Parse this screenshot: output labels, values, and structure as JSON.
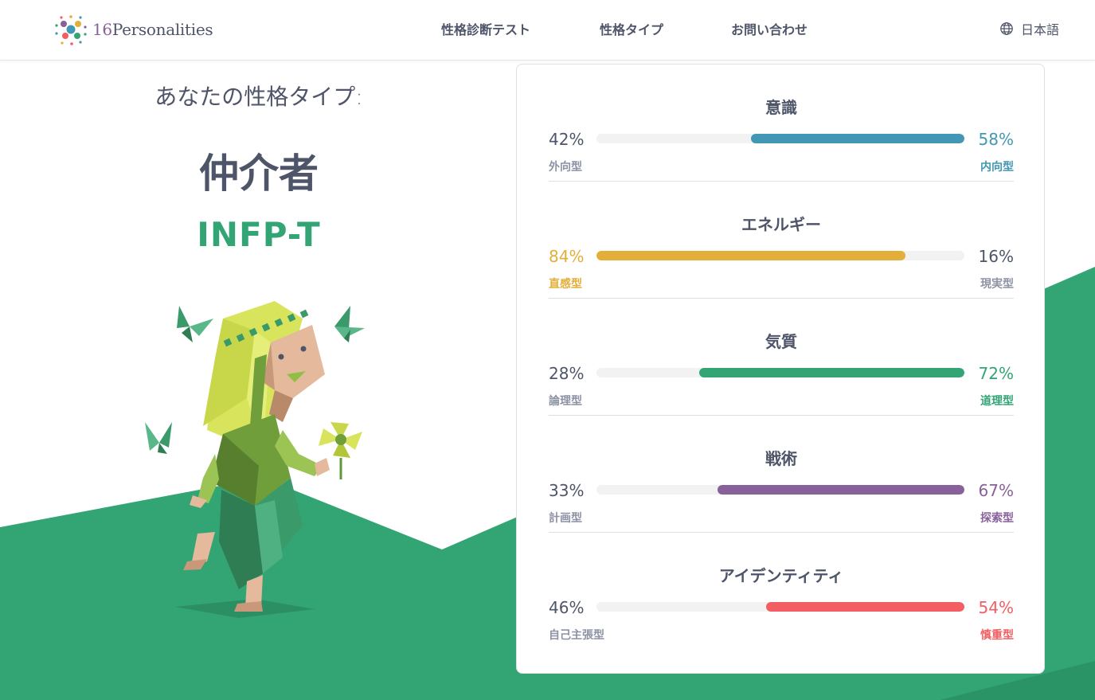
{
  "header": {
    "logo": {
      "number": "16",
      "word": "Personalities"
    },
    "nav": [
      "性格診断テスト",
      "性格タイプ",
      "お問い合わせ"
    ],
    "language": {
      "label": "日本語",
      "icon": "globe-icon"
    }
  },
  "result": {
    "intro": "あなたの性格タイプ:",
    "name": "仲介者",
    "code": "INFP-T"
  },
  "colors": {
    "green": "#33a474",
    "mind": "#4298b4",
    "energy": "#e4ae3a",
    "nature": "#33a474",
    "tactics": "#88619a",
    "identity": "#f25e62"
  },
  "traits": [
    {
      "title": "意識",
      "left_pct": "42%",
      "right_pct": "58%",
      "left_label": "外向型",
      "right_label": "内向型",
      "dominant": "right",
      "value": 58,
      "color": "#4298b4"
    },
    {
      "title": "エネルギー",
      "left_pct": "84%",
      "right_pct": "16%",
      "left_label": "直感型",
      "right_label": "現実型",
      "dominant": "left",
      "value": 84,
      "color": "#e4ae3a"
    },
    {
      "title": "気質",
      "left_pct": "28%",
      "right_pct": "72%",
      "left_label": "論理型",
      "right_label": "道理型",
      "dominant": "right",
      "value": 72,
      "color": "#33a474"
    },
    {
      "title": "戦術",
      "left_pct": "33%",
      "right_pct": "67%",
      "left_label": "計画型",
      "right_label": "探索型",
      "dominant": "right",
      "value": 67,
      "color": "#88619a"
    },
    {
      "title": "アイデンティティ",
      "left_pct": "46%",
      "right_pct": "54%",
      "left_label": "自己主張型",
      "right_label": "慎重型",
      "dominant": "right",
      "value": 54,
      "color": "#f25e62"
    }
  ]
}
